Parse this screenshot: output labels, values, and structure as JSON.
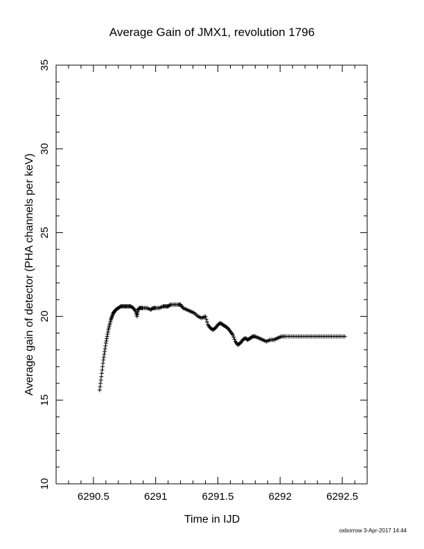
{
  "chart_data": {
    "type": "scatter",
    "title": "Average Gain of JMX1, revolution 1796",
    "xlabel": "Time in IJD",
    "ylabel": "Average gain of detector (PHA channels per keV)",
    "xlim": [
      6290.2,
      6292.7
    ],
    "ylim": [
      10,
      35
    ],
    "x_ticks": [
      6290.5,
      6291,
      6291.5,
      6292,
      6292.5
    ],
    "x_tick_labels": [
      "6290.5",
      "6291",
      "6291.5",
      "6292",
      "6292.5"
    ],
    "y_ticks": [
      10,
      15,
      20,
      25,
      30,
      35
    ],
    "y_tick_labels": [
      "10",
      "15",
      "20",
      "25",
      "30",
      "35"
    ],
    "marker": "+",
    "grid": false,
    "series": [
      {
        "x": [
          6290.55,
          6290.56,
          6290.57,
          6290.58,
          6290.59,
          6290.6,
          6290.61,
          6290.62,
          6290.63,
          6290.64,
          6290.65,
          6290.66,
          6290.67,
          6290.68,
          6290.7,
          6290.72,
          6290.74,
          6290.76,
          6290.78,
          6290.8,
          6290.82,
          6290.84,
          6290.85,
          6290.86,
          6290.87,
          6290.88,
          6290.9,
          6290.93,
          6290.96,
          6290.98,
          6291.0,
          6291.03,
          6291.06,
          6291.08,
          6291.1,
          6291.12,
          6291.15,
          6291.18,
          6291.2,
          6291.22,
          6291.25,
          6291.28,
          6291.31,
          6291.34,
          6291.37,
          6291.4,
          6291.42,
          6291.44,
          6291.46,
          6291.48,
          6291.5,
          6291.52,
          6291.54,
          6291.56,
          6291.58,
          6291.6,
          6291.62,
          6291.64,
          6291.66,
          6291.68,
          6291.7,
          6291.72,
          6291.74,
          6291.76,
          6291.78,
          6291.8,
          6291.83,
          6291.86,
          6291.89,
          6291.92,
          6291.95,
          6291.98,
          6292.01,
          6292.04,
          6292.08,
          6292.12,
          6292.16,
          6292.2,
          6292.24,
          6292.28,
          6292.32,
          6292.36,
          6292.4,
          6292.44,
          6292.48,
          6292.52
        ],
        "y": [
          15.6,
          16.2,
          16.8,
          17.4,
          17.9,
          18.4,
          18.8,
          19.2,
          19.5,
          19.8,
          20.0,
          20.2,
          20.3,
          20.4,
          20.5,
          20.6,
          20.6,
          20.6,
          20.6,
          20.6,
          20.5,
          20.3,
          20.0,
          20.4,
          20.5,
          20.5,
          20.5,
          20.5,
          20.4,
          20.5,
          20.5,
          20.5,
          20.6,
          20.6,
          20.6,
          20.7,
          20.7,
          20.7,
          20.7,
          20.5,
          20.4,
          20.3,
          20.2,
          20.0,
          19.9,
          20.0,
          19.5,
          19.3,
          19.2,
          19.3,
          19.5,
          19.6,
          19.5,
          19.4,
          19.3,
          19.1,
          18.9,
          18.5,
          18.3,
          18.4,
          18.6,
          18.7,
          18.6,
          18.7,
          18.8,
          18.8,
          18.7,
          18.6,
          18.5,
          18.6,
          18.6,
          18.7,
          18.8,
          18.8,
          18.8,
          18.8,
          18.8,
          18.8,
          18.8,
          18.8,
          18.8,
          18.8,
          18.8,
          18.8,
          18.8,
          18.8
        ]
      }
    ]
  },
  "footer": "oxborrow  3-Apr-2017 14:44"
}
